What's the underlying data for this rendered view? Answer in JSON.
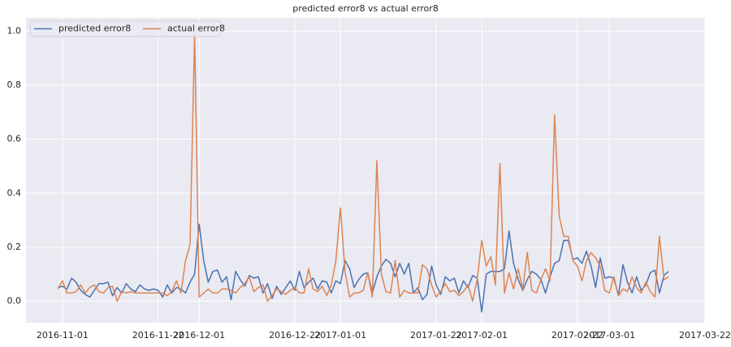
{
  "chart_data": {
    "type": "line",
    "title": "predicted error8 vs actual error8",
    "x": [
      "2016-10-31",
      "2016-11-01",
      "2016-11-02",
      "2016-11-03",
      "2016-11-04",
      "2016-11-05",
      "2016-11-06",
      "2016-11-07",
      "2016-11-08",
      "2016-11-09",
      "2016-11-10",
      "2016-11-11",
      "2016-11-12",
      "2016-11-13",
      "2016-11-14",
      "2016-11-15",
      "2016-11-16",
      "2016-11-17",
      "2016-11-18",
      "2016-11-19",
      "2016-11-20",
      "2016-11-21",
      "2016-11-22",
      "2016-11-23",
      "2016-11-24",
      "2016-11-25",
      "2016-11-26",
      "2016-11-27",
      "2016-11-28",
      "2016-11-29",
      "2016-11-30",
      "2016-12-01",
      "2016-12-02",
      "2016-12-03",
      "2016-12-04",
      "2016-12-05",
      "2016-12-06",
      "2016-12-07",
      "2016-12-08",
      "2016-12-09",
      "2016-12-10",
      "2016-12-11",
      "2016-12-12",
      "2016-12-13",
      "2016-12-14",
      "2016-12-15",
      "2016-12-16",
      "2016-12-17",
      "2016-12-18",
      "2016-12-19",
      "2016-12-20",
      "2016-12-21",
      "2016-12-22",
      "2016-12-23",
      "2016-12-24",
      "2016-12-25",
      "2016-12-26",
      "2016-12-27",
      "2016-12-28",
      "2016-12-29",
      "2016-12-30",
      "2016-12-31",
      "2017-01-01",
      "2017-01-02",
      "2017-01-03",
      "2017-01-04",
      "2017-01-05",
      "2017-01-06",
      "2017-01-07",
      "2017-01-08",
      "2017-01-09",
      "2017-01-10",
      "2017-01-11",
      "2017-01-12",
      "2017-01-13",
      "2017-01-14",
      "2017-01-15",
      "2017-01-16",
      "2017-01-17",
      "2017-01-18",
      "2017-01-19",
      "2017-01-20",
      "2017-01-21",
      "2017-01-22",
      "2017-01-23",
      "2017-01-24",
      "2017-01-25",
      "2017-01-26",
      "2017-01-27",
      "2017-01-28",
      "2017-01-29",
      "2017-01-30",
      "2017-01-31",
      "2017-02-01",
      "2017-02-02",
      "2017-02-03",
      "2017-02-04",
      "2017-02-05",
      "2017-02-06",
      "2017-02-07",
      "2017-02-08",
      "2017-02-09",
      "2017-02-10",
      "2017-02-11",
      "2017-02-12",
      "2017-02-13",
      "2017-02-14",
      "2017-02-15",
      "2017-02-16",
      "2017-02-17",
      "2017-02-18",
      "2017-02-19",
      "2017-02-20",
      "2017-02-21",
      "2017-02-22",
      "2017-02-23",
      "2017-02-24",
      "2017-02-25",
      "2017-02-26",
      "2017-02-27",
      "2017-02-28",
      "2017-03-01",
      "2017-03-02",
      "2017-03-03",
      "2017-03-04",
      "2017-03-05",
      "2017-03-06",
      "2017-03-07",
      "2017-03-08",
      "2017-03-09",
      "2017-03-10",
      "2017-03-11",
      "2017-03-12",
      "2017-03-13",
      "2017-03-14"
    ],
    "series": [
      {
        "name": "predicted error8",
        "color": "#4c72b0",
        "values": [
          0.05,
          0.055,
          0.045,
          0.085,
          0.07,
          0.04,
          0.025,
          0.015,
          0.04,
          0.065,
          0.065,
          0.07,
          0.02,
          0.05,
          0.03,
          0.065,
          0.045,
          0.035,
          0.06,
          0.045,
          0.04,
          0.045,
          0.04,
          0.015,
          0.06,
          0.03,
          0.05,
          0.045,
          0.03,
          0.07,
          0.1,
          0.285,
          0.15,
          0.07,
          0.11,
          0.115,
          0.07,
          0.09,
          0.005,
          0.11,
          0.08,
          0.055,
          0.095,
          0.085,
          0.09,
          0.03,
          0.065,
          0.01,
          0.055,
          0.025,
          0.05,
          0.075,
          0.04,
          0.11,
          0.05,
          0.07,
          0.085,
          0.045,
          0.075,
          0.07,
          0.03,
          0.075,
          0.065,
          0.15,
          0.12,
          0.05,
          0.08,
          0.1,
          0.105,
          0.03,
          0.09,
          0.13,
          0.155,
          0.14,
          0.09,
          0.14,
          0.1,
          0.14,
          0.03,
          0.05,
          0.005,
          0.025,
          0.13,
          0.06,
          0.025,
          0.09,
          0.075,
          0.085,
          0.03,
          0.075,
          0.05,
          0.095,
          0.085,
          -0.04,
          0.1,
          0.11,
          0.11,
          0.11,
          0.12,
          0.26,
          0.14,
          0.08,
          0.04,
          0.08,
          0.11,
          0.1,
          0.08,
          0.03,
          0.09,
          0.14,
          0.15,
          0.225,
          0.225,
          0.155,
          0.16,
          0.14,
          0.185,
          0.13,
          0.05,
          0.16,
          0.085,
          0.09,
          0.085,
          0.02,
          0.135,
          0.07,
          0.03,
          0.09,
          0.04,
          0.06,
          0.105,
          0.115,
          0.03,
          0.095,
          0.11
        ]
      },
      {
        "name": "actual error8",
        "color": "#dd8452",
        "values": [
          0.045,
          0.075,
          0.03,
          0.03,
          0.035,
          0.06,
          0.03,
          0.05,
          0.06,
          0.035,
          0.03,
          0.05,
          0.055,
          0.0,
          0.035,
          0.03,
          0.035,
          0.03,
          0.03,
          0.03,
          0.03,
          0.03,
          0.03,
          0.03,
          0.02,
          0.035,
          0.075,
          0.03,
          0.15,
          0.21,
          0.99,
          0.015,
          0.03,
          0.045,
          0.03,
          0.03,
          0.045,
          0.045,
          0.04,
          0.03,
          0.05,
          0.065,
          0.09,
          0.035,
          0.05,
          0.06,
          0.0,
          0.02,
          0.045,
          0.035,
          0.025,
          0.04,
          0.05,
          0.03,
          0.03,
          0.12,
          0.045,
          0.035,
          0.055,
          0.02,
          0.06,
          0.15,
          0.345,
          0.11,
          0.015,
          0.03,
          0.03,
          0.04,
          0.105,
          0.015,
          0.52,
          0.1,
          0.035,
          0.03,
          0.15,
          0.015,
          0.04,
          0.03,
          0.03,
          0.03,
          0.135,
          0.12,
          0.06,
          0.015,
          0.035,
          0.065,
          0.035,
          0.04,
          0.02,
          0.035,
          0.06,
          0.0,
          0.08,
          0.225,
          0.13,
          0.165,
          0.06,
          0.51,
          0.03,
          0.105,
          0.045,
          0.12,
          0.045,
          0.18,
          0.04,
          0.03,
          0.08,
          0.12,
          0.075,
          0.69,
          0.315,
          0.24,
          0.24,
          0.15,
          0.13,
          0.075,
          0.15,
          0.18,
          0.16,
          0.13,
          0.04,
          0.03,
          0.09,
          0.02,
          0.045,
          0.035,
          0.09,
          0.05,
          0.03,
          0.07,
          0.035,
          0.015,
          0.24,
          0.08,
          0.09
        ]
      }
    ],
    "xlim": [
      "2016-10-24",
      "2017-03-22"
    ],
    "xticks": [
      "2016-11-01",
      "2016-11-22",
      "2016-12-01",
      "2016-12-22",
      "2017-01-01",
      "2017-01-22",
      "2017-02-01",
      "2017-02-22",
      "2017-03-01",
      "2017-03-22"
    ],
    "ylim": [
      -0.08,
      1.05
    ],
    "yticks": [
      {
        "value": 0,
        "label": "0.0"
      },
      0.2,
      0.4,
      0.6,
      0.8,
      {
        "value": 1,
        "label": "1.0"
      }
    ],
    "grid": true,
    "legend": "upper left"
  }
}
